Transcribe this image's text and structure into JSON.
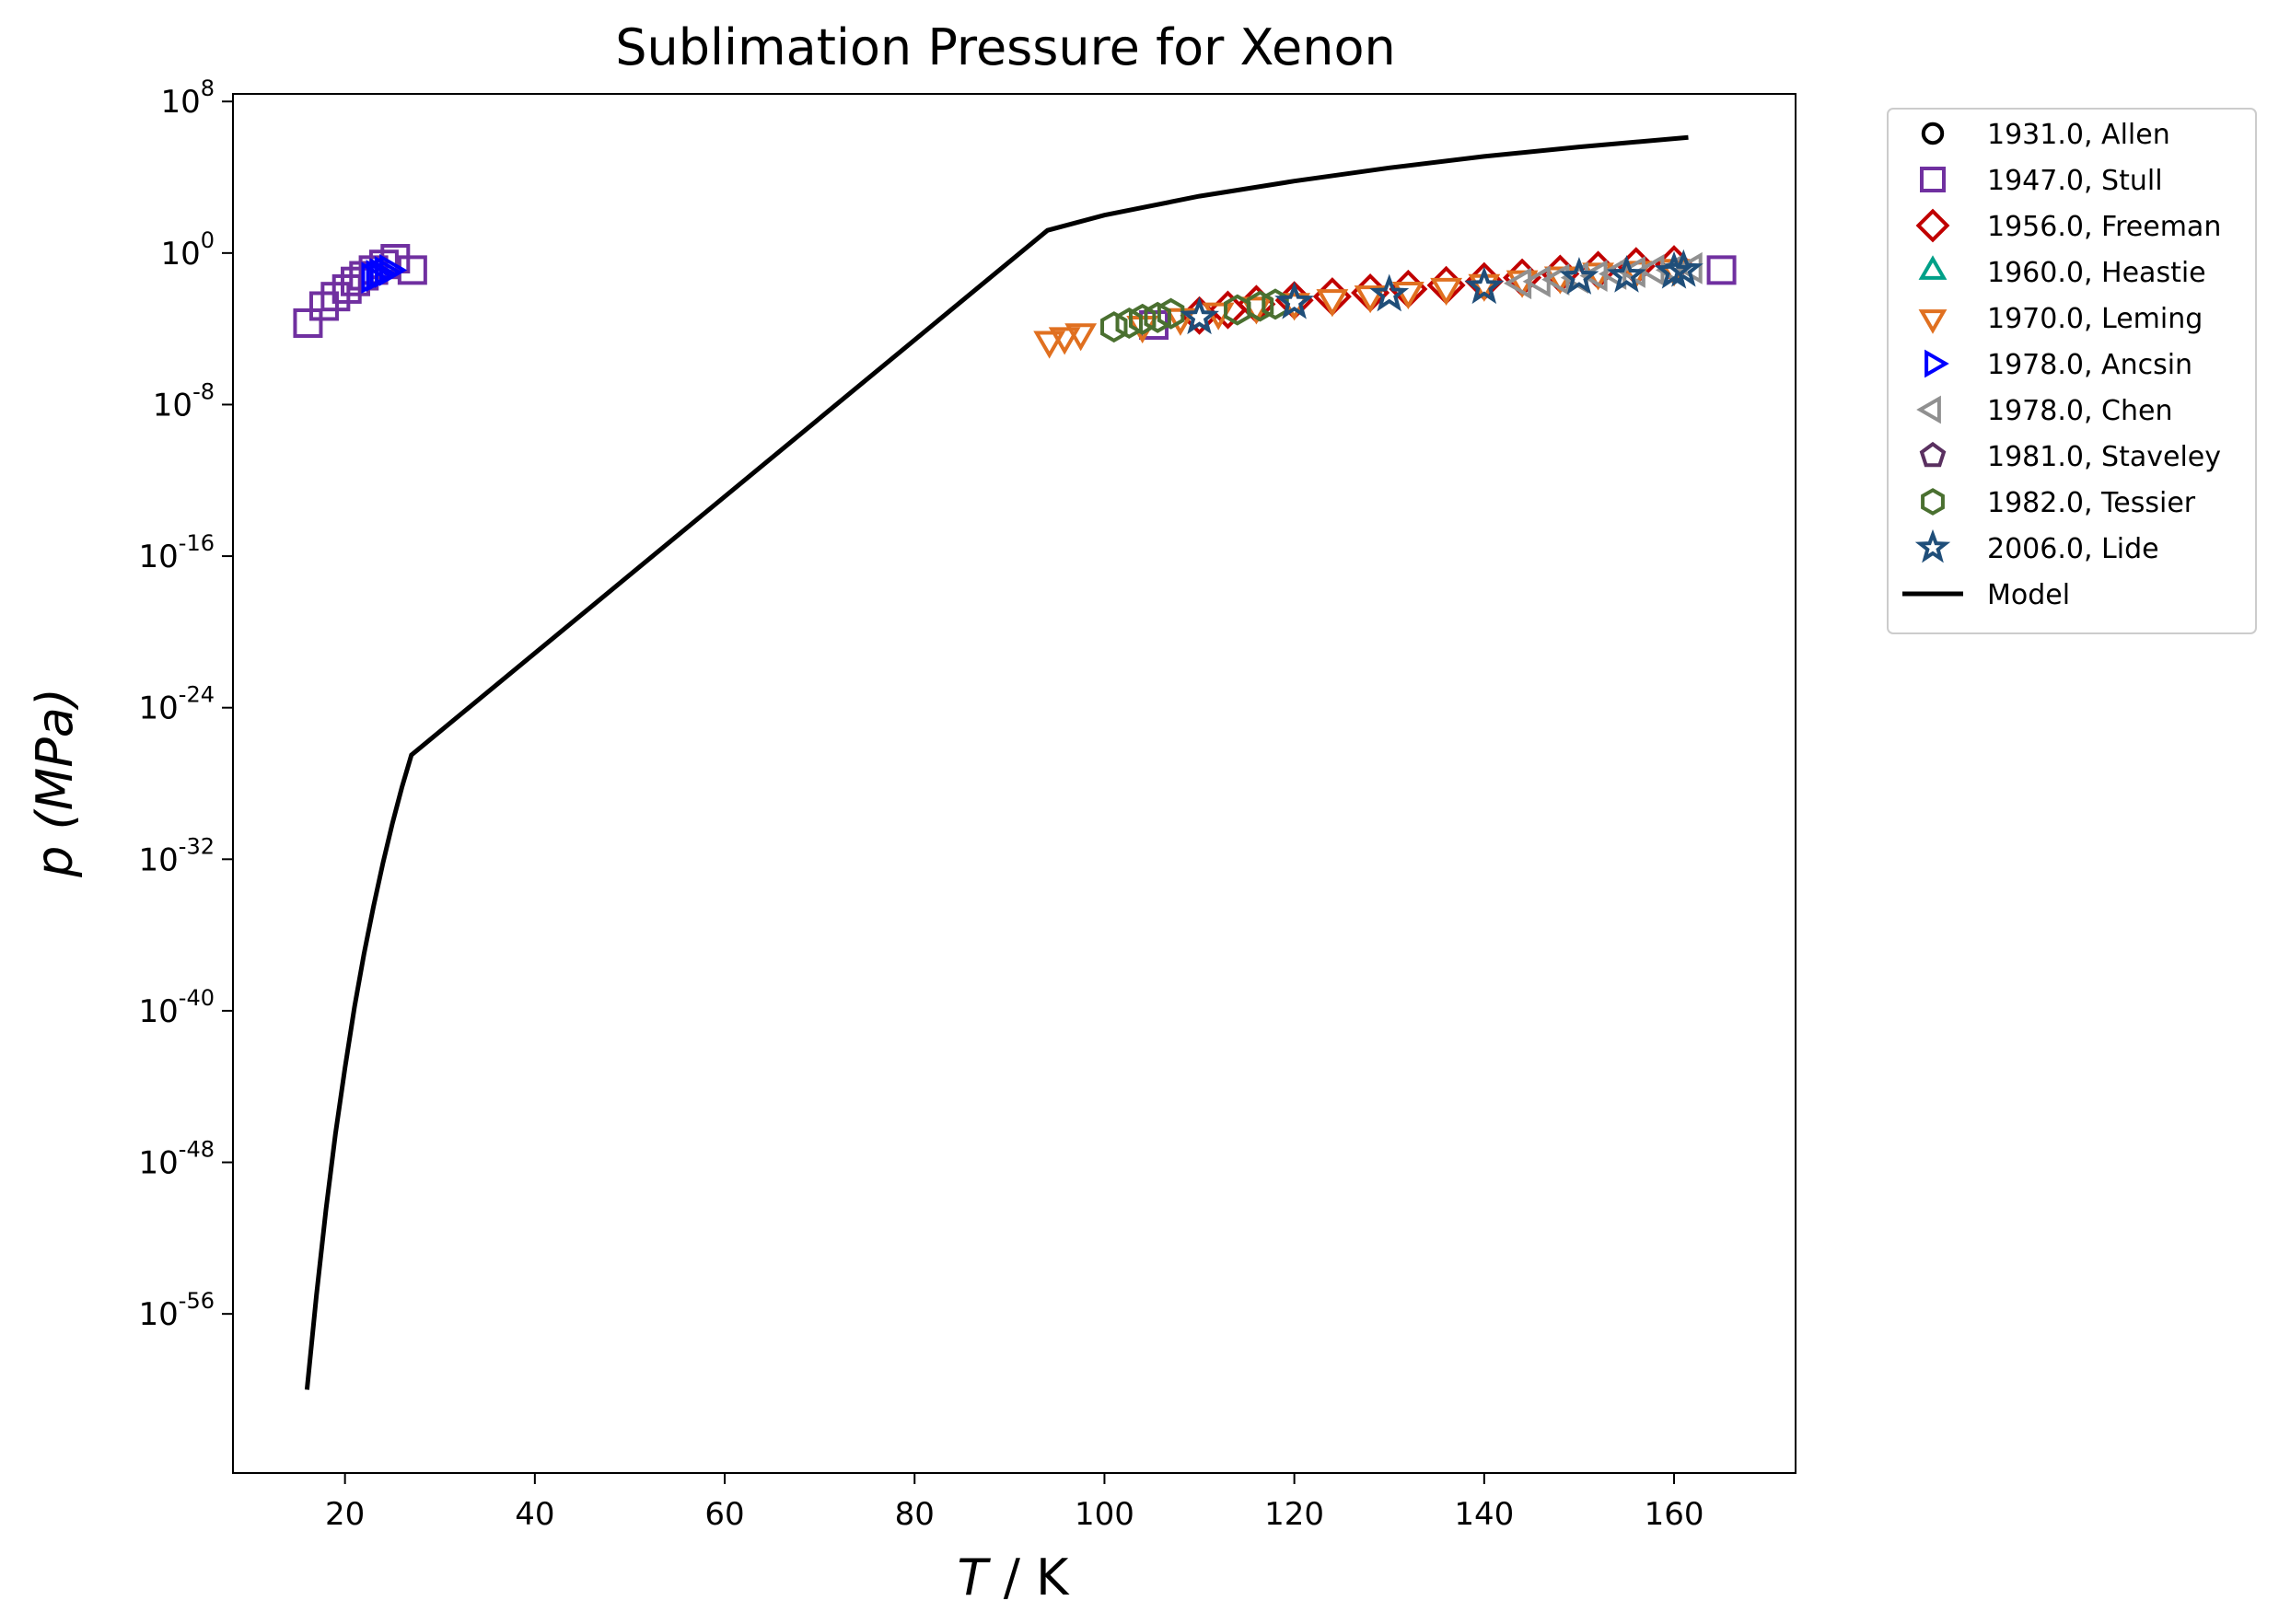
{
  "chart_data": {
    "type": "scatter",
    "title": "Sublimation Pressure for Xenon",
    "xlabel_italic": "T",
    "xlabel_rest": " / K",
    "ylabel_italic": "p (MPa)",
    "xlim": [
      8.2,
      172.8
    ],
    "ylim_log10": [
      -64.4,
      8.4
    ],
    "xticks": [
      20,
      40,
      60,
      80,
      100,
      120,
      140,
      160
    ],
    "yticks_exponents": [
      8,
      0,
      -8,
      -16,
      -24,
      -32,
      -40,
      -48,
      -56
    ],
    "ytick_base": "10",
    "legend_position": "outside-right-top",
    "series": [
      {
        "name": "1931.0, Allen",
        "marker": "circle",
        "color": "#000000",
        "points": []
      },
      {
        "name": "1947.0, Stull",
        "marker": "square",
        "color": "#7030a0",
        "points": [
          [
            16.1,
            -3.7
          ],
          [
            17.8,
            -2.8
          ],
          [
            19.0,
            -2.3
          ],
          [
            20.2,
            -1.9
          ],
          [
            21.1,
            -1.5
          ],
          [
            22.0,
            -1.2
          ],
          [
            23.0,
            -0.9
          ],
          [
            24.1,
            -0.6
          ],
          [
            25.3,
            -0.3
          ],
          [
            27.1,
            -0.9
          ],
          [
            105.2,
            -3.8
          ],
          [
            165.0,
            -0.9
          ]
        ]
      },
      {
        "name": "1956.0, Freeman",
        "marker": "diamond",
        "color": "#c00000",
        "points": [
          [
            110,
            -3.3
          ],
          [
            113,
            -3.0
          ],
          [
            116,
            -2.7
          ],
          [
            120,
            -2.5
          ],
          [
            124,
            -2.3
          ],
          [
            128,
            -2.1
          ],
          [
            132,
            -1.9
          ],
          [
            136,
            -1.7
          ],
          [
            140,
            -1.5
          ],
          [
            144,
            -1.3
          ],
          [
            148,
            -1.1
          ],
          [
            152,
            -0.9
          ],
          [
            156,
            -0.7
          ],
          [
            160,
            -0.6
          ]
        ]
      },
      {
        "name": "1960.0, Heastie",
        "marker": "triangle-up",
        "color": "#00a088",
        "points": []
      },
      {
        "name": "1970.0, Leming",
        "marker": "triangle-down",
        "color": "#e07020",
        "points": [
          [
            94.2,
            -4.6
          ],
          [
            95.8,
            -4.4
          ],
          [
            97.5,
            -4.2
          ],
          [
            104,
            -3.8
          ],
          [
            108,
            -3.4
          ],
          [
            112,
            -3.1
          ],
          [
            116,
            -2.8
          ],
          [
            120,
            -2.6
          ],
          [
            124,
            -2.4
          ],
          [
            128,
            -2.2
          ],
          [
            132,
            -2.0
          ],
          [
            136,
            -1.8
          ],
          [
            140,
            -1.6
          ],
          [
            144,
            -1.4
          ],
          [
            148,
            -1.2
          ],
          [
            152,
            -1.0
          ],
          [
            156,
            -0.9
          ],
          [
            160,
            -0.8
          ]
        ]
      },
      {
        "name": "1978.0, Ancsin",
        "marker": "triangle-right",
        "color": "#0000ff",
        "points": [
          [
            22.7,
            -1.3
          ],
          [
            23.2,
            -1.2
          ],
          [
            23.6,
            -1.1
          ],
          [
            24.1,
            -1.0
          ],
          [
            24.6,
            -0.9
          ]
        ]
      },
      {
        "name": "1978.0, Chen",
        "marker": "triangle-left",
        "color": "#909090",
        "points": [
          [
            144,
            -1.6
          ],
          [
            146,
            -1.5
          ],
          [
            148,
            -1.4
          ],
          [
            150,
            -1.3
          ],
          [
            152,
            -1.2
          ],
          [
            154,
            -1.1
          ],
          [
            156,
            -1.0
          ],
          [
            158,
            -0.9
          ],
          [
            160,
            -0.9
          ],
          [
            162,
            -0.8
          ]
        ]
      },
      {
        "name": "1981.0, Staveley",
        "marker": "pentagon",
        "color": "#5a3060",
        "points": []
      },
      {
        "name": "1982.0, Tessier",
        "marker": "hexagon",
        "color": "#4a7030",
        "points": [
          [
            101,
            -3.9
          ],
          [
            102.6,
            -3.7
          ],
          [
            104,
            -3.5
          ],
          [
            105.6,
            -3.4
          ],
          [
            107,
            -3.2
          ],
          [
            114,
            -3.0
          ],
          [
            116.4,
            -2.8
          ],
          [
            118,
            -2.7
          ]
        ]
      },
      {
        "name": "2006.0, Lide",
        "marker": "star",
        "color": "#1f4e79",
        "points": [
          [
            110,
            -3.4
          ],
          [
            120,
            -2.6
          ],
          [
            130,
            -2.2
          ],
          [
            140,
            -1.8
          ],
          [
            150,
            -1.3
          ],
          [
            155,
            -1.2
          ],
          [
            160,
            -1.0
          ],
          [
            161,
            -0.9
          ]
        ]
      },
      {
        "name": "Model",
        "marker": "line",
        "color": "#000000",
        "points": [
          [
            16,
            -60.0
          ],
          [
            17,
            -55.0
          ],
          [
            18,
            -50.5
          ],
          [
            19,
            -46.5
          ],
          [
            20,
            -43.0
          ],
          [
            21,
            -39.8
          ],
          [
            22,
            -37.0
          ],
          [
            23,
            -34.5
          ],
          [
            24,
            -32.2
          ],
          [
            25,
            -30.1
          ],
          [
            26,
            -28.2
          ],
          [
            27,
            -26.5
          ],
          [
            94,
            1.2
          ],
          [
            100,
            2.0
          ],
          [
            110,
            3.0
          ],
          [
            120,
            3.8
          ],
          [
            130,
            4.5
          ],
          [
            140,
            5.1
          ],
          [
            150,
            5.6
          ],
          [
            161.5,
            6.1
          ]
        ]
      }
    ]
  }
}
